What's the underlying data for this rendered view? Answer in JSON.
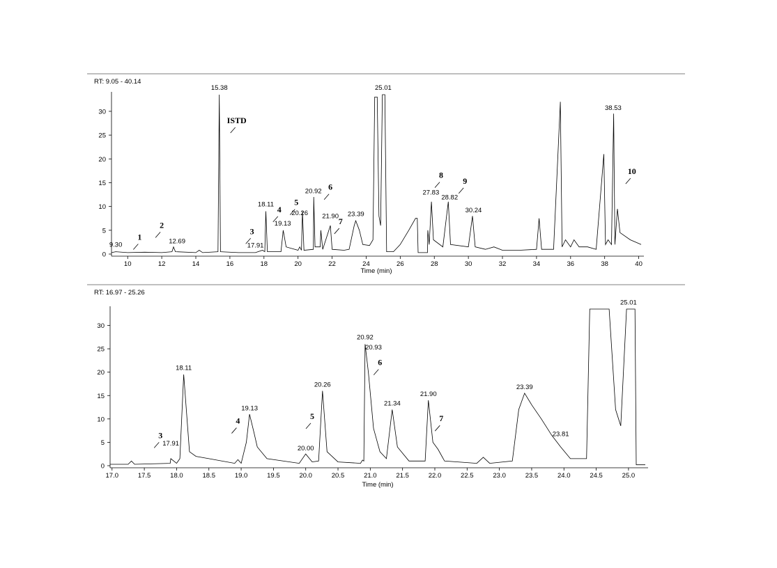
{
  "chart_data": [
    {
      "type": "line",
      "title": "RT: 9.05 - 40.14",
      "x_label": "Time (min)",
      "color": "#000000",
      "x": [
        9.05,
        9.3,
        10,
        11,
        12,
        12.6,
        12.69,
        12.8,
        14,
        14.2,
        14.4,
        15.3,
        15.38,
        15.45,
        16.5,
        17.5,
        17.91,
        18.05,
        18.11,
        18.2,
        19,
        19.13,
        19.3,
        20,
        20.1,
        20.2,
        20.26,
        20.35,
        20.9,
        20.92,
        21.0,
        21.3,
        21.34,
        21.45,
        21.9,
        22,
        22.7,
        23,
        23.3,
        23.39,
        23.6,
        23.8,
        24.2,
        24.4,
        24.5,
        24.65,
        24.75,
        24.85,
        24.95,
        25.01,
        25.1,
        25.2,
        25.6,
        26,
        26.5,
        26.9,
        27,
        27.05,
        27.6,
        27.62,
        27.7,
        27.83,
        27.95,
        28.5,
        28.82,
        28.95,
        30,
        30.24,
        30.4,
        31,
        31.5,
        32,
        33,
        34,
        34.15,
        34.3,
        35,
        35.4,
        35.5,
        35.7,
        36,
        36.2,
        36.5,
        37,
        37.5,
        37.95,
        38.05,
        38.2,
        38.4,
        38.53,
        38.6,
        38.75,
        38.9,
        39.5,
        40.14
      ],
      "values": [
        0.3,
        0.5,
        0.3,
        0.4,
        0.3,
        0.5,
        1.5,
        0.5,
        0.3,
        0.8,
        0.3,
        0.5,
        33.5,
        0.5,
        0.3,
        0.3,
        0.8,
        0.5,
        9,
        0.5,
        0.5,
        5,
        1.5,
        0.8,
        1.5,
        0.8,
        9,
        0.8,
        1,
        12,
        1.5,
        1.5,
        5,
        1,
        6,
        1,
        0.8,
        1,
        6,
        7,
        5,
        2,
        1.8,
        3,
        33,
        33,
        8,
        6,
        33.5,
        33.5,
        33.5,
        0.5,
        0.5,
        2,
        5,
        7.5,
        7.5,
        0.3,
        0.3,
        5,
        2,
        11,
        3,
        1.5,
        11,
        2,
        1.5,
        8,
        1.5,
        1,
        1.5,
        0.8,
        0.8,
        1,
        7.5,
        1,
        1,
        32,
        1.5,
        3,
        1.5,
        3,
        1.5,
        1.5,
        1,
        21,
        2,
        3,
        2,
        29.5,
        2,
        9.5,
        4.5,
        3,
        2
      ],
      "xlim": [
        9.05,
        40.14
      ],
      "ylim": [
        0,
        33.5
      ],
      "xticks": [
        10,
        12,
        14,
        16,
        18,
        20,
        22,
        24,
        26,
        28,
        30,
        32,
        34,
        36,
        38,
        40
      ],
      "yticks": [
        0,
        5,
        10,
        15,
        20,
        25,
        30
      ],
      "peak_labels": [
        {
          "text": "9.30",
          "x": 9.3,
          "y": 1.5
        },
        {
          "text": "12.69",
          "x": 12.9,
          "y": 2.3
        },
        {
          "text": "15.38",
          "x": 15.38,
          "y": 34.5
        },
        {
          "text": "17.91",
          "x": 17.5,
          "y": 1.4
        },
        {
          "text": "18.11",
          "x": 18.11,
          "y": 10
        },
        {
          "text": "19.13",
          "x": 19.1,
          "y": 6
        },
        {
          "text": "20.26",
          "x": 20.1,
          "y": 8.2
        },
        {
          "text": "20.92",
          "x": 20.9,
          "y": 12.8
        },
        {
          "text": "21.90",
          "x": 21.9,
          "y": 7.5
        },
        {
          "text": "23.39",
          "x": 23.4,
          "y": 8
        },
        {
          "text": "25.01",
          "x": 25.0,
          "y": 34.5
        },
        {
          "text": "27.83",
          "x": 27.8,
          "y": 12.5
        },
        {
          "text": "28.82",
          "x": 28.9,
          "y": 11.5
        },
        {
          "text": "30.24",
          "x": 30.3,
          "y": 8.8
        },
        {
          "text": "38.53",
          "x": 38.5,
          "y": 30.3
        }
      ],
      "compound_labels": [
        {
          "text": "1",
          "x": 10.7,
          "y": 3
        },
        {
          "text": "2",
          "x": 12.0,
          "y": 5.5
        },
        {
          "text": "ISTD",
          "x": 16.4,
          "y": 27.5
        },
        {
          "text": "3",
          "x": 17.3,
          "y": 4.2
        },
        {
          "text": "4",
          "x": 18.9,
          "y": 8.8
        },
        {
          "text": "5",
          "x": 19.9,
          "y": 10.3
        },
        {
          "text": "6",
          "x": 21.9,
          "y": 13.5
        },
        {
          "text": "7",
          "x": 22.5,
          "y": 6.3
        },
        {
          "text": "8",
          "x": 28.4,
          "y": 16
        },
        {
          "text": "9",
          "x": 29.8,
          "y": 14.8
        },
        {
          "text": "10",
          "x": 39.6,
          "y": 16.8
        }
      ]
    },
    {
      "type": "line",
      "title": "RT: 16.97 - 25.26",
      "x_label": "Time (min)",
      "color": "#000000",
      "x": [
        16.97,
        17.25,
        17.3,
        17.35,
        17.9,
        17.91,
        18.0,
        18.05,
        18.11,
        18.2,
        18.3,
        18.5,
        18.9,
        18.95,
        19.0,
        19.08,
        19.13,
        19.2,
        19.25,
        19.4,
        19.9,
        20.0,
        20.1,
        20.2,
        20.26,
        20.33,
        20.5,
        20.85,
        20.88,
        20.9,
        20.92,
        20.97,
        21.05,
        21.15,
        21.25,
        21.34,
        21.42,
        21.6,
        21.85,
        21.9,
        21.97,
        22.05,
        22.15,
        22.65,
        22.75,
        22.85,
        23.2,
        23.3,
        23.39,
        23.5,
        23.65,
        23.81,
        23.95,
        24.1,
        24.35,
        24.4,
        24.7,
        24.8,
        24.88,
        24.97,
        25.1,
        25.12,
        25.26
      ],
      "values": [
        0.3,
        0.3,
        1,
        0.3,
        0.5,
        1.5,
        0.5,
        1.5,
        19.5,
        3,
        2,
        1.5,
        0.5,
        1.3,
        0.5,
        5,
        11,
        7,
        4,
        1.5,
        0.5,
        2.5,
        0.8,
        1,
        16,
        3,
        0.8,
        0.5,
        1.2,
        1,
        26,
        20,
        8,
        3,
        1.5,
        12,
        4,
        1,
        1,
        14,
        5,
        3.5,
        1,
        0.5,
        1.8,
        0.5,
        1,
        12,
        15.5,
        13,
        10,
        6.5,
        4,
        1.5,
        1.5,
        33.5,
        33.5,
        12,
        8.5,
        33.5,
        33.5,
        0.2,
        0.2
      ],
      "xlim": [
        16.97,
        25.26
      ],
      "ylim": [
        0,
        33.5
      ],
      "xticks": [
        {
          "value": 17,
          "label": "17.0"
        },
        17.5,
        {
          "value": 18,
          "label": "18.0"
        },
        18.5,
        {
          "value": 19,
          "label": "19.0"
        },
        19.5,
        {
          "value": 20,
          "label": "20.0"
        },
        20.5,
        {
          "value": 21,
          "label": "21.0"
        },
        21.5,
        {
          "value": 22,
          "label": "22.0"
        },
        22.5,
        {
          "value": 23,
          "label": "23.0"
        },
        23.5,
        {
          "value": 24,
          "label": "24.0"
        },
        24.5,
        {
          "value": 25,
          "label": "25.0"
        }
      ],
      "yticks": [
        0,
        5,
        10,
        15,
        20,
        25,
        30
      ],
      "peak_labels": [
        {
          "text": "17.91",
          "x": 17.91,
          "y": 4.3
        },
        {
          "text": "18.11",
          "x": 18.11,
          "y": 20.5
        },
        {
          "text": "19.13",
          "x": 19.13,
          "y": 11.8
        },
        {
          "text": "20.00",
          "x": 20.0,
          "y": 3.3
        },
        {
          "text": "20.26",
          "x": 20.26,
          "y": 16.9
        },
        {
          "text": "20.92",
          "x": 20.92,
          "y": 27
        },
        {
          "text": "20.93",
          "x": 21.05,
          "y": 24.9
        },
        {
          "text": "21.34",
          "x": 21.34,
          "y": 12.9
        },
        {
          "text": "21.90",
          "x": 21.9,
          "y": 14.9
        },
        {
          "text": "23.39",
          "x": 23.39,
          "y": 16.4
        },
        {
          "text": "23.81",
          "x": 23.95,
          "y": 6.3
        },
        {
          "text": "25.01",
          "x": 25.0,
          "y": 34.5
        }
      ],
      "compound_labels": [
        {
          "text": "3",
          "x": 17.75,
          "y": 5.9
        },
        {
          "text": "4",
          "x": 18.95,
          "y": 9
        },
        {
          "text": "5",
          "x": 20.1,
          "y": 10
        },
        {
          "text": "6",
          "x": 21.15,
          "y": 21.5
        },
        {
          "text": "7",
          "x": 22.1,
          "y": 9.5
        }
      ]
    }
  ]
}
